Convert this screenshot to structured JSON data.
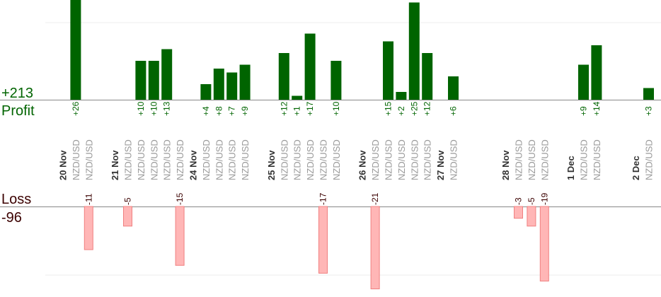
{
  "summary": {
    "profit_value": "+213",
    "profit_label": "Profit",
    "loss_label": "Loss",
    "loss_value": "-96"
  },
  "colors": {
    "profit_bar": "#006400",
    "profit_text": "#006400",
    "loss_bar": "#ffb6b6",
    "loss_bar_edge": "#f08080",
    "loss_text": "#3b0000",
    "date_text": "#333333",
    "pair_text": "#999999",
    "axis": "#888888",
    "grid": "#eeeeee"
  },
  "chart_data": {
    "type": "bar",
    "pair": "NZD/USD",
    "dates": [
      {
        "label": "20 Nov",
        "slot": 0
      },
      {
        "label": "21 Nov",
        "slot": 4
      },
      {
        "label": "24 Nov",
        "slot": 10
      },
      {
        "label": "25 Nov",
        "slot": 16
      },
      {
        "label": "26 Nov",
        "slot": 23
      },
      {
        "label": "27 Nov",
        "slot": 29
      },
      {
        "label": "28 Nov",
        "slot": 34
      },
      {
        "label": "1 Dec",
        "slot": 39
      },
      {
        "label": "2 Dec",
        "slot": 44
      }
    ],
    "trades": [
      {
        "slot": 1,
        "value": 26
      },
      {
        "slot": 2,
        "value": -11
      },
      {
        "slot": 5,
        "value": -5
      },
      {
        "slot": 6,
        "value": 10
      },
      {
        "slot": 7,
        "value": 10
      },
      {
        "slot": 8,
        "value": 13
      },
      {
        "slot": 9,
        "value": -15
      },
      {
        "slot": 11,
        "value": 4
      },
      {
        "slot": 12,
        "value": 8
      },
      {
        "slot": 13,
        "value": 7
      },
      {
        "slot": 14,
        "value": 9
      },
      {
        "slot": 17,
        "value": 12
      },
      {
        "slot": 18,
        "value": 1
      },
      {
        "slot": 19,
        "value": 17
      },
      {
        "slot": 20,
        "value": -17
      },
      {
        "slot": 21,
        "value": 10
      },
      {
        "slot": 24,
        "value": -21
      },
      {
        "slot": 25,
        "value": 15
      },
      {
        "slot": 26,
        "value": 2
      },
      {
        "slot": 27,
        "value": 25
      },
      {
        "slot": 28,
        "value": 12
      },
      {
        "slot": 30,
        "value": 6
      },
      {
        "slot": 35,
        "value": -3
      },
      {
        "slot": 36,
        "value": -5
      },
      {
        "slot": 37,
        "value": -19
      },
      {
        "slot": 40,
        "value": 9
      },
      {
        "slot": 41,
        "value": 14
      },
      {
        "slot": 45,
        "value": 3
      }
    ]
  }
}
